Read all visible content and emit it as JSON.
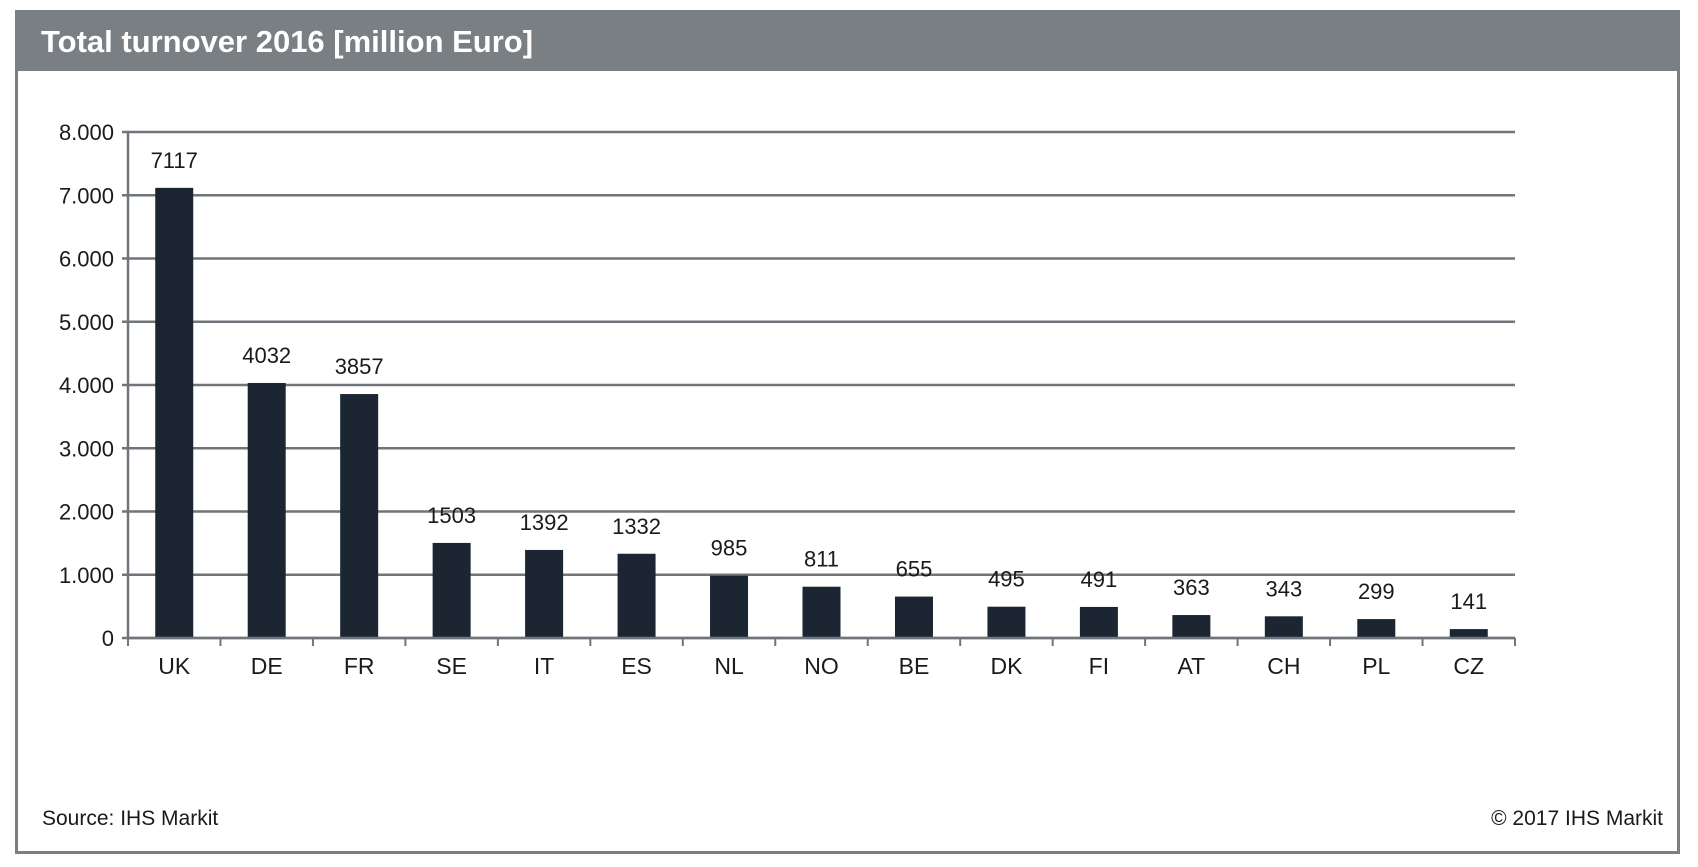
{
  "header": {
    "title": "Total turnover 2016 [million Euro]"
  },
  "footer": {
    "source": "Source: IHS Markit",
    "copyright": "© 2017 IHS Markit"
  },
  "colors": {
    "bar": "#1b2632",
    "grid": "#6f757a",
    "header_bg": "#7a7f84"
  },
  "chart_data": {
    "type": "bar",
    "title": "Total turnover 2016 [million Euro]",
    "categories": [
      "UK",
      "DE",
      "FR",
      "SE",
      "IT",
      "ES",
      "NL",
      "NO",
      "BE",
      "DK",
      "FI",
      "AT",
      "CH",
      "PL",
      "CZ"
    ],
    "values": [
      7117,
      4032,
      3857,
      1503,
      1392,
      1332,
      985,
      811,
      655,
      495,
      491,
      363,
      343,
      299,
      141
    ],
    "ylim": [
      0,
      8000
    ],
    "yticks": [
      0,
      1000,
      2000,
      3000,
      4000,
      5000,
      6000,
      7000,
      8000
    ],
    "ytick_labels": [
      "0",
      "1.000",
      "2.000",
      "3.000",
      "4.000",
      "5.000",
      "6.000",
      "7.000",
      "8.000"
    ],
    "xlabel": "",
    "ylabel": "",
    "grid": true,
    "data_labels": [
      "7117",
      "4032",
      "3857",
      "1503",
      "1392",
      "1332",
      "985",
      "811",
      "655",
      "495",
      "491",
      "363",
      "343",
      "299",
      "141"
    ]
  }
}
